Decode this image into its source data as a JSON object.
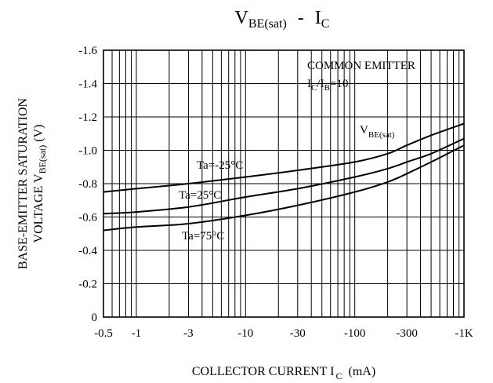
{
  "chart_data": {
    "type": "line",
    "title": {
      "main": "V",
      "main_sub": "BE(sat)",
      "sep": "-",
      "second": "I",
      "second_sub": "C"
    },
    "xlabel": {
      "text": "COLLECTOR CURRENT I",
      "sub": "C",
      "unit": "(mA)"
    },
    "ylabel": {
      "line1": "BASE-EMITTER SATURATION",
      "line2_pre": "VOLTAGE V",
      "line2_sub": "BE(sat)",
      "line2_post": "(V)"
    },
    "x_scale": "log",
    "x_range": [
      0.5,
      1000
    ],
    "x_ticks": [
      {
        "value": 0.5,
        "label": "-0.5"
      },
      {
        "value": 1,
        "label": "-1"
      },
      {
        "value": 3,
        "label": "-3"
      },
      {
        "value": 10,
        "label": "-10"
      },
      {
        "value": 30,
        "label": "-30"
      },
      {
        "value": 100,
        "label": "-100"
      },
      {
        "value": 300,
        "label": "-300"
      },
      {
        "value": 1000,
        "label": "-1K"
      }
    ],
    "y_range": [
      0,
      1.6
    ],
    "y_ticks": [
      {
        "value": 0,
        "label": "0"
      },
      {
        "value": 0.2,
        "label": "-0.2"
      },
      {
        "value": 0.4,
        "label": "-0.4"
      },
      {
        "value": 0.6,
        "label": "-0.6"
      },
      {
        "value": 0.8,
        "label": "-0.8"
      },
      {
        "value": 1.0,
        "label": "-1.0"
      },
      {
        "value": 1.2,
        "label": "-1.2"
      },
      {
        "value": 1.4,
        "label": "-1.4"
      },
      {
        "value": 1.6,
        "label": "-1.6"
      }
    ],
    "grid": true,
    "annotation": {
      "line1": "COMMON EMITTER",
      "line2_pre": "I",
      "line2_sub1": "C",
      "line2_mid": "/I",
      "line2_sub2": "B",
      "line2_post": "=10"
    },
    "curve_label": {
      "main": "V",
      "sub": "BE(sat)"
    },
    "series": [
      {
        "name": "Ta=-25°C",
        "x": [
          0.5,
          1,
          3,
          10,
          30,
          100,
          200,
          300,
          500,
          1000
        ],
        "y": [
          0.75,
          0.77,
          0.8,
          0.84,
          0.88,
          0.93,
          0.98,
          1.03,
          1.09,
          1.16
        ]
      },
      {
        "name": "Ta=25°C",
        "x": [
          0.5,
          1,
          3,
          10,
          30,
          100,
          200,
          300,
          500,
          1000
        ],
        "y": [
          0.62,
          0.63,
          0.66,
          0.72,
          0.77,
          0.84,
          0.89,
          0.93,
          0.98,
          1.07
        ]
      },
      {
        "name": "Ta=75°C",
        "x": [
          0.5,
          1,
          3,
          10,
          30,
          100,
          200,
          300,
          500,
          1000
        ],
        "y": [
          0.52,
          0.54,
          0.56,
          0.61,
          0.67,
          0.75,
          0.81,
          0.86,
          0.93,
          1.03
        ]
      }
    ]
  }
}
